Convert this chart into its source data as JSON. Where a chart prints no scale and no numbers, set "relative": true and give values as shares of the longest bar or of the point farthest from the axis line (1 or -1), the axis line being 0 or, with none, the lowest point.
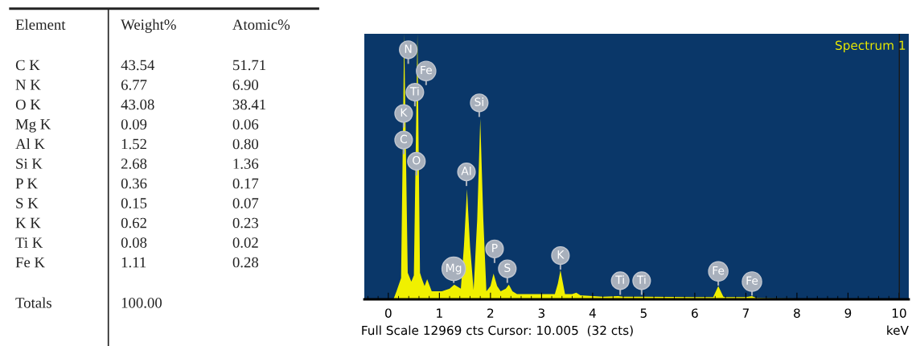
{
  "chart_data": [
    {
      "type": "other",
      "annotations": [
        "Element",
        "Weight%",
        "Atomic%",
        "C K",
        "43.54",
        "51.71",
        "N K",
        "6.77",
        "6.90",
        "O K",
        "43.08",
        "38.41",
        "Mg K",
        "0.09",
        "0.06",
        "Al K",
        "1.52",
        "0.80",
        "Si K",
        "2.68",
        "1.36",
        "P K",
        "0.36",
        "0.17",
        "S K",
        "0.15",
        "0.07",
        "K K",
        "0.62",
        "0.23",
        "Ti K",
        "0.08",
        "0.02",
        "Fe K",
        "1.11",
        "0.28",
        "Totals",
        "100.00"
      ]
    },
    {
      "type": "area",
      "relative": true,
      "xlabel": "keV",
      "xlim": [
        -0.47,
        10.19
      ],
      "xticks": [
        0,
        1,
        2,
        3,
        4,
        5,
        6,
        7,
        8,
        9,
        10
      ],
      "grid": false,
      "series": [
        {
          "color": "#f0f000",
          "x": [
            0.1,
            0.16,
            0.25,
            0.31,
            0.38,
            0.45,
            0.5,
            0.57,
            0.62,
            0.66,
            0.71,
            0.76,
            0.85,
            1.05,
            1.2,
            1.29,
            1.42,
            1.48,
            1.54,
            1.6,
            1.67,
            1.74,
            1.8,
            1.86,
            1.92,
            2.0,
            2.06,
            2.13,
            2.2,
            2.3,
            2.36,
            2.43,
            2.52,
            3.0,
            3.26,
            3.32,
            3.37,
            3.42,
            3.46,
            3.6,
            3.68,
            3.76,
            4.2,
            4.5,
            4.6,
            5.0,
            6.0,
            6.36,
            6.46,
            6.56,
            6.6,
            7.0,
            7.12,
            7.2,
            7.5,
            8.0,
            10.19
          ],
          "values": [
            0,
            0.03,
            0.08,
            1,
            0.1,
            0.067,
            0.09,
            1,
            0.1,
            0.076,
            0.05,
            0.076,
            0.03,
            0.03,
            0.04,
            0.055,
            0.04,
            0.2,
            0.415,
            0.2,
            0.035,
            0.3,
            0.68,
            0.3,
            0.03,
            0.05,
            0.097,
            0.05,
            0.03,
            0.04,
            0.055,
            0.03,
            0.02,
            0.02,
            0.02,
            0.06,
            0.11,
            0.06,
            0.02,
            0.02,
            0.025,
            0.015,
            0.01,
            0.012,
            0.01,
            0.01,
            0.008,
            0.008,
            0.05,
            0.01,
            0.008,
            0.008,
            0.012,
            0.005,
            0.004,
            0.003,
            0.002
          ]
        }
      ],
      "ref_lines": [
        {
          "axis": "x",
          "value": 10.005,
          "color": "#1a1a1a"
        }
      ],
      "annotations": [
        "Spectrum 1",
        "Full Scale 12969 cts Cursor: 10.005  (32 cts)",
        {
          "text": "N",
          "x": 0.39,
          "y": 0.94
        },
        {
          "text": "Fe",
          "x": 0.74,
          "y": 0.86
        },
        {
          "text": "Ti",
          "x": 0.52,
          "y": 0.78
        },
        {
          "text": "K",
          "x": 0.3,
          "y": 0.7
        },
        {
          "text": "C",
          "x": 0.3,
          "y": 0.6
        },
        {
          "text": "O",
          "x": 0.55,
          "y": 0.52
        },
        {
          "text": "Si",
          "x": 1.78,
          "y": 0.74
        },
        {
          "text": "Al",
          "x": 1.53,
          "y": 0.48
        },
        {
          "text": "Mg",
          "x": 1.28,
          "y": 0.115
        },
        {
          "text": "P",
          "x": 2.08,
          "y": 0.19
        },
        {
          "text": "S",
          "x": 2.33,
          "y": 0.115
        },
        {
          "text": "K",
          "x": 3.37,
          "y": 0.165
        },
        {
          "text": "Ti",
          "x": 4.54,
          "y": 0.07
        },
        {
          "text": "Ti",
          "x": 4.96,
          "y": 0.07
        },
        {
          "text": "Fe",
          "x": 6.46,
          "y": 0.105
        },
        {
          "text": "Fe",
          "x": 7.12,
          "y": 0.067
        }
      ]
    }
  ]
}
